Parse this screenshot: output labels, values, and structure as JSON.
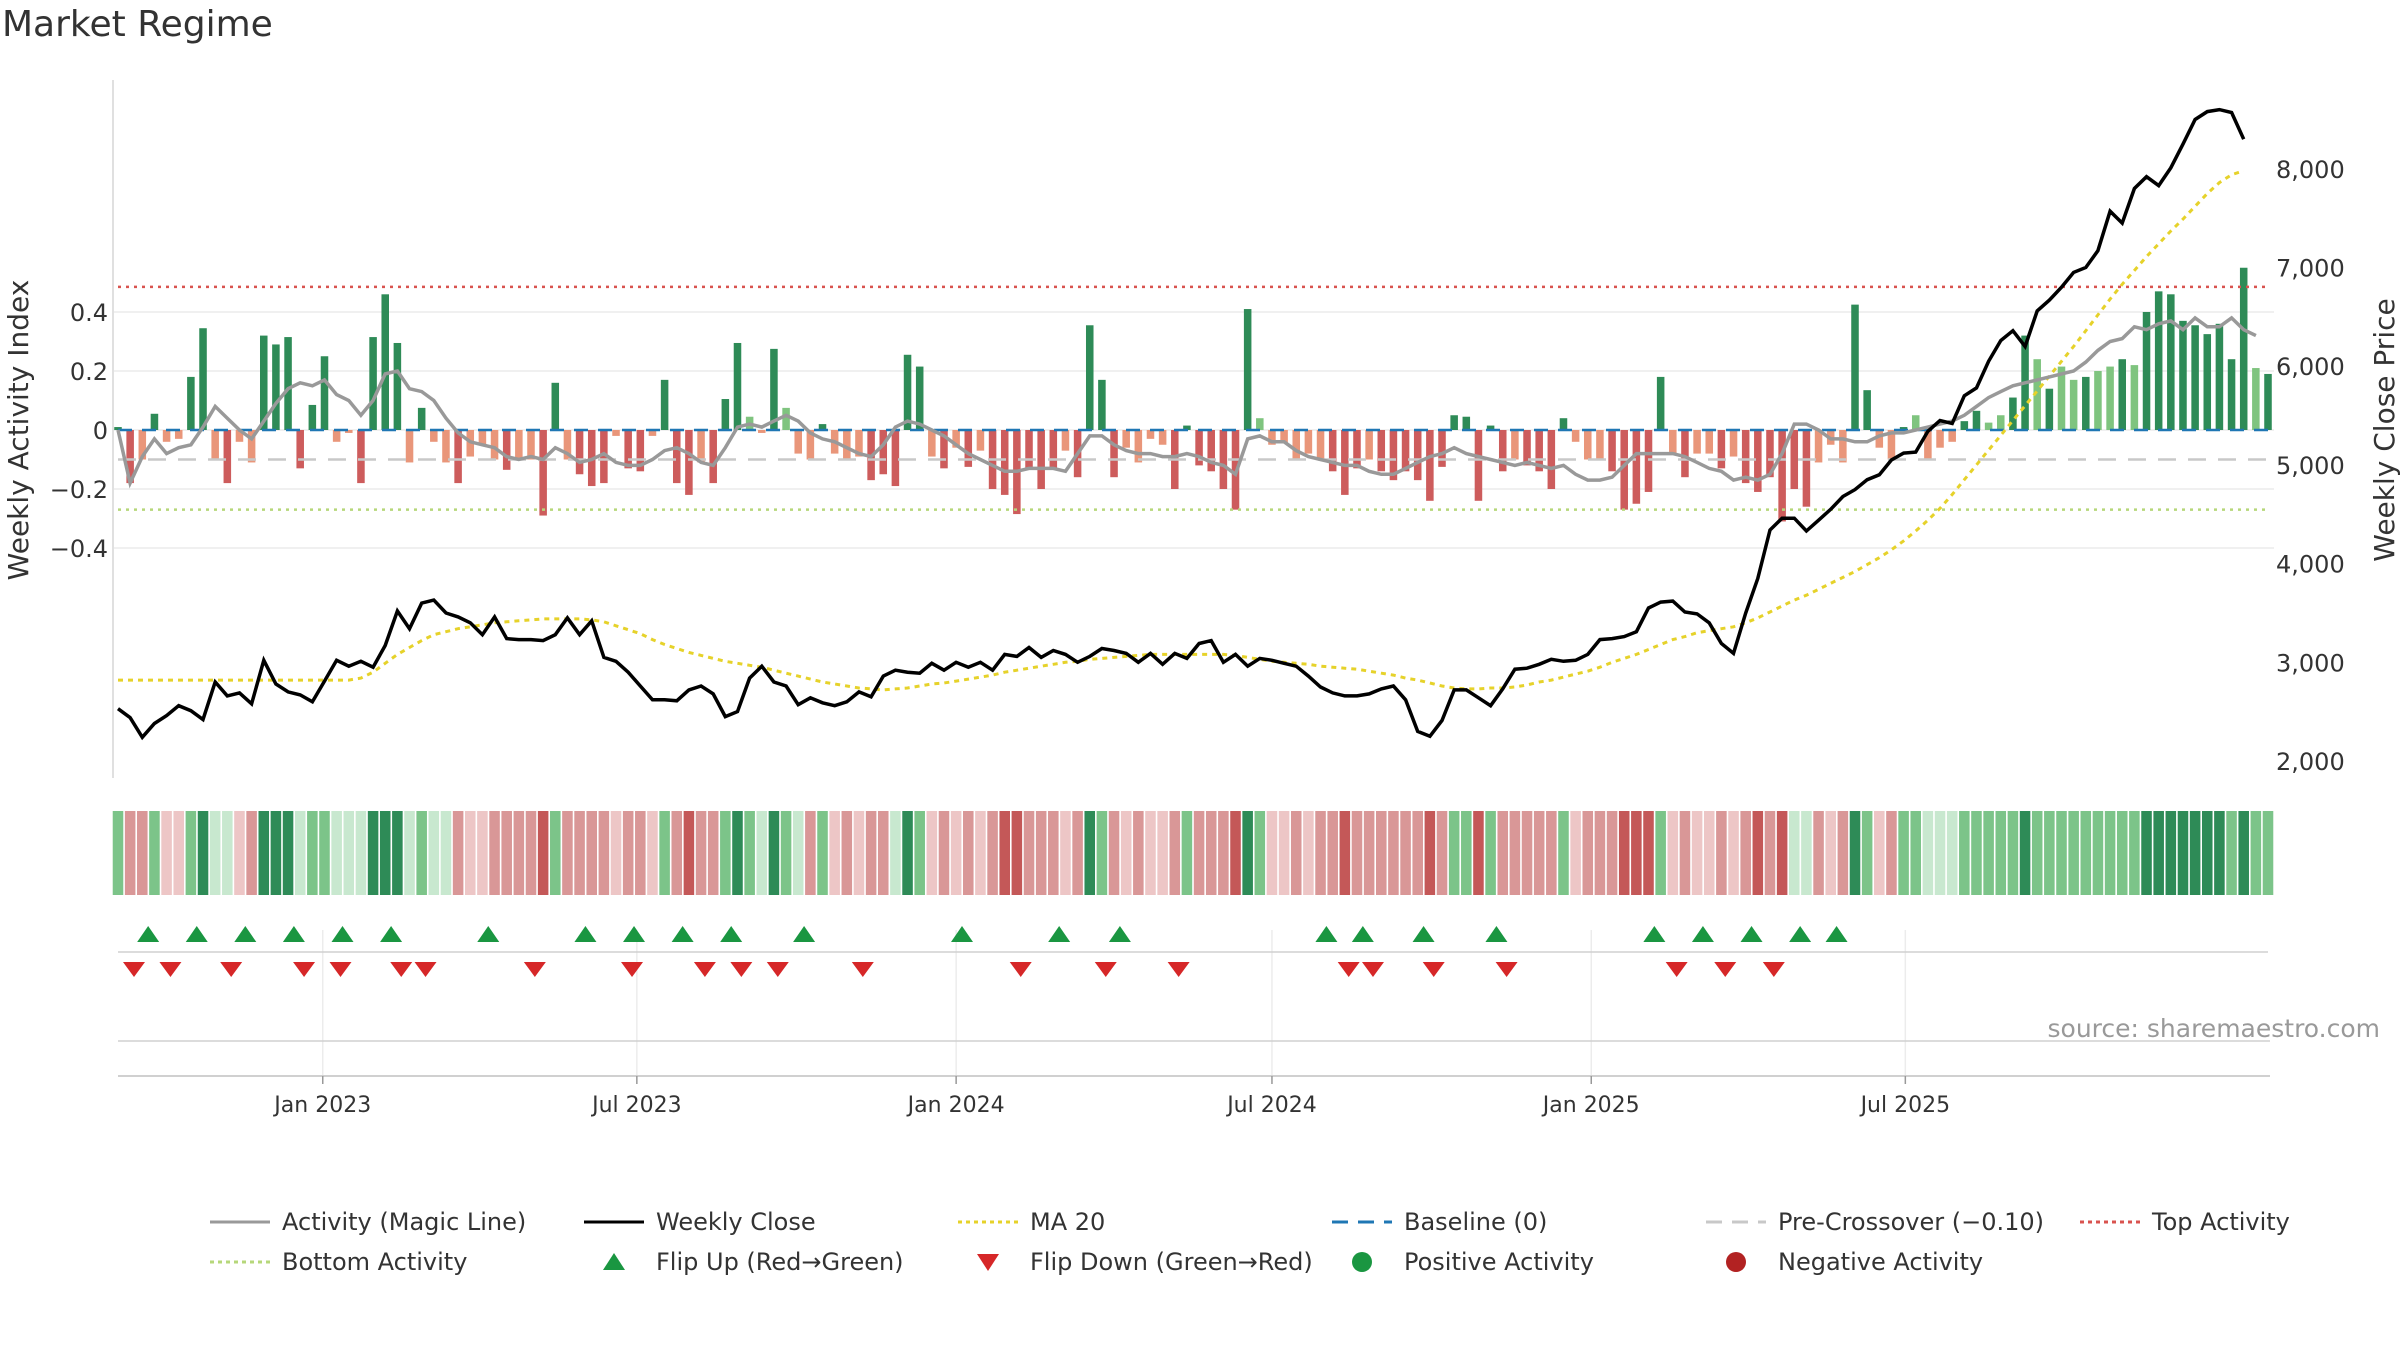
{
  "title": "Market Regime",
  "source": "source: sharemaestro.com",
  "chart_data": {
    "type": "bar+line",
    "title": "Market Regime",
    "left_axis": {
      "label": "Weekly Activity Index",
      "range": [
        -0.6,
        0.6
      ],
      "ticks": [
        0.4,
        0.2,
        0,
        -0.2,
        -0.4
      ],
      "tick_labels": [
        "0.4",
        "0.2",
        "0",
        "−0.2",
        "−0.4"
      ]
    },
    "right_axis": {
      "label": "Weekly Close Price",
      "range": [
        1800,
        8700
      ],
      "ticks": [
        8000,
        7000,
        6000,
        5000,
        4000,
        3000,
        2000
      ],
      "tick_labels": [
        "8,000",
        "7,000",
        "6,000",
        "5,000",
        "4,000",
        "3,000",
        "2,000"
      ]
    },
    "x_axis": {
      "type": "date",
      "start": "2022-09-05",
      "end": "2025-09-15",
      "ticks": [
        "Jan 2023",
        "Jul 2023",
        "Jan 2024",
        "Jul 2024",
        "Jan 2025",
        "Jul 2025"
      ],
      "tick_dates": [
        "2023-01-01",
        "2023-07-01",
        "2024-01-01",
        "2024-07-01",
        "2025-01-01",
        "2025-07-01"
      ]
    },
    "levels": {
      "top_activity": 0.485,
      "bottom_activity": -0.27,
      "pre_crossover": -0.1,
      "baseline": 0
    },
    "activity": [
      0.01,
      -0.18,
      -0.1,
      0.055,
      -0.04,
      -0.03,
      0.18,
      0.345,
      -0.1,
      -0.18,
      -0.04,
      -0.11,
      0.32,
      0.29,
      0.315,
      -0.13,
      0.085,
      0.25,
      -0.04,
      -0.01,
      -0.18,
      0.315,
      0.46,
      0.295,
      -0.11,
      0.075,
      -0.04,
      -0.11,
      -0.18,
      -0.09,
      -0.05,
      -0.1,
      -0.135,
      -0.095,
      -0.1,
      -0.29,
      0.16,
      -0.1,
      -0.15,
      -0.19,
      -0.18,
      -0.02,
      -0.13,
      -0.14,
      -0.02,
      0.17,
      -0.18,
      -0.22,
      -0.11,
      -0.18,
      0.105,
      0.295,
      0.045,
      -0.01,
      0.275,
      0.075,
      -0.08,
      -0.1,
      0.02,
      -0.08,
      -0.1,
      -0.09,
      -0.17,
      -0.15,
      -0.19,
      0.255,
      0.215,
      -0.09,
      -0.13,
      -0.06,
      -0.125,
      -0.07,
      -0.2,
      -0.22,
      -0.285,
      -0.13,
      -0.2,
      -0.13,
      -0.07,
      -0.16,
      0.355,
      0.17,
      -0.16,
      -0.06,
      -0.11,
      -0.03,
      -0.05,
      -0.2,
      0.015,
      -0.12,
      -0.14,
      -0.2,
      -0.27,
      0.41,
      0.04,
      -0.05,
      -0.045,
      -0.1,
      -0.08,
      -0.1,
      -0.14,
      -0.22,
      -0.13,
      -0.1,
      -0.14,
      -0.17,
      -0.14,
      -0.17,
      -0.24,
      -0.125,
      0.05,
      0.045,
      -0.24,
      0.015,
      -0.14,
      -0.1,
      -0.12,
      -0.14,
      -0.2,
      0.04,
      -0.04,
      -0.1,
      -0.1,
      -0.14,
      -0.27,
      -0.25,
      -0.21,
      0.18,
      -0.08,
      -0.16,
      -0.08,
      -0.08,
      -0.13,
      -0.09,
      -0.18,
      -0.21,
      -0.16,
      -0.31,
      -0.2,
      -0.26,
      -0.11,
      -0.05,
      -0.11,
      0.425,
      0.135,
      -0.06,
      -0.1,
      0.01,
      0.05,
      -0.1,
      -0.06,
      -0.04,
      0.03,
      0.065,
      0.025,
      0.05,
      0.11,
      0.32,
      0.24,
      0.14,
      0.215,
      0.17,
      0.18,
      0.2,
      0.215,
      0.24,
      0.22,
      0.4,
      0.47,
      0.46,
      0.37,
      0.355,
      0.325,
      0.36,
      0.24,
      0.55,
      0.21,
      0.19
    ],
    "weekly_close": [
      2530,
      2440,
      2240,
      2380,
      2460,
      2560,
      2510,
      2420,
      2800,
      2660,
      2690,
      2580,
      3020,
      2780,
      2700,
      2670,
      2600,
      2810,
      3020,
      2960,
      3010,
      2950,
      3170,
      3520,
      3340,
      3600,
      3630,
      3500,
      3460,
      3400,
      3280,
      3460,
      3240,
      3230,
      3230,
      3220,
      3280,
      3450,
      3280,
      3420,
      3050,
      3010,
      2900,
      2760,
      2620,
      2620,
      2610,
      2720,
      2760,
      2680,
      2450,
      2500,
      2840,
      2960,
      2800,
      2760,
      2570,
      2640,
      2590,
      2560,
      2600,
      2700,
      2650,
      2860,
      2920,
      2900,
      2890,
      2990,
      2920,
      3000,
      2950,
      3000,
      2920,
      3080,
      3060,
      3150,
      3050,
      3120,
      3080,
      3000,
      3060,
      3140,
      3120,
      3090,
      3000,
      3090,
      2980,
      3090,
      3040,
      3190,
      3220,
      3000,
      3080,
      2960,
      3040,
      3020,
      2990,
      2960,
      2860,
      2750,
      2690,
      2660,
      2660,
      2680,
      2730,
      2760,
      2620,
      2300,
      2250,
      2410,
      2720,
      2720,
      2640,
      2560,
      2730,
      2930,
      2940,
      2980,
      3030,
      3010,
      3020,
      3080,
      3230,
      3240,
      3260,
      3310,
      3550,
      3610,
      3620,
      3510,
      3490,
      3400,
      3190,
      3090,
      3500,
      3850,
      4340,
      4460,
      4460,
      4330,
      4440,
      4550,
      4680,
      4750,
      4850,
      4900,
      5050,
      5120,
      5130,
      5340,
      5450,
      5420,
      5700,
      5780,
      6050,
      6260,
      6360,
      6200,
      6560,
      6670,
      6800,
      6950,
      7000,
      7170,
      7570,
      7450,
      7800,
      7920,
      7830,
      8010,
      8250,
      8500,
      8580,
      8600,
      8570,
      8300
    ],
    "ma20": [
      2820,
      2820,
      2820,
      2820,
      2820,
      2820,
      2820,
      2820,
      2820,
      2820,
      2820,
      2820,
      2820,
      2820,
      2820,
      2820,
      2820,
      2820,
      2820,
      2820,
      2840,
      2900,
      2990,
      3080,
      3150,
      3220,
      3280,
      3310,
      3340,
      3360,
      3380,
      3400,
      3410,
      3420,
      3430,
      3440,
      3440,
      3440,
      3440,
      3430,
      3410,
      3370,
      3330,
      3290,
      3230,
      3180,
      3140,
      3100,
      3070,
      3040,
      3010,
      2990,
      2970,
      2950,
      2920,
      2890,
      2860,
      2830,
      2800,
      2780,
      2760,
      2740,
      2730,
      2720,
      2730,
      2740,
      2760,
      2780,
      2790,
      2810,
      2830,
      2850,
      2870,
      2900,
      2920,
      2940,
      2960,
      2980,
      3000,
      3010,
      3030,
      3040,
      3050,
      3060,
      3070,
      3080,
      3080,
      3080,
      3080,
      3080,
      3080,
      3080,
      3070,
      3050,
      3030,
      3010,
      3000,
      2990,
      2980,
      2960,
      2950,
      2940,
      2930,
      2910,
      2890,
      2870,
      2840,
      2820,
      2790,
      2760,
      2740,
      2730,
      2730,
      2740,
      2740,
      2750,
      2770,
      2800,
      2820,
      2850,
      2880,
      2910,
      2950,
      3000,
      3040,
      3080,
      3130,
      3180,
      3230,
      3260,
      3300,
      3320,
      3340,
      3360,
      3400,
      3450,
      3510,
      3570,
      3630,
      3680,
      3740,
      3800,
      3860,
      3920,
      3990,
      4060,
      4140,
      4230,
      4330,
      4440,
      4560,
      4700,
      4850,
      5000,
      5150,
      5300,
      5450,
      5600,
      5750,
      5900,
      6050,
      6200,
      6360,
      6520,
      6680,
      6830,
      6970,
      7110,
      7240,
      7370,
      7490,
      7620,
      7750,
      7860,
      7940,
      7980
    ],
    "magic_line": [
      0.0,
      -0.18,
      -0.09,
      -0.03,
      -0.08,
      -0.06,
      -0.05,
      0.01,
      0.08,
      0.04,
      0.0,
      -0.03,
      0.03,
      0.09,
      0.14,
      0.16,
      0.15,
      0.17,
      0.12,
      0.1,
      0.05,
      0.1,
      0.19,
      0.2,
      0.14,
      0.13,
      0.1,
      0.04,
      -0.01,
      -0.04,
      -0.05,
      -0.06,
      -0.09,
      -0.1,
      -0.09,
      -0.1,
      -0.06,
      -0.08,
      -0.11,
      -0.1,
      -0.08,
      -0.11,
      -0.12,
      -0.12,
      -0.1,
      -0.07,
      -0.06,
      -0.08,
      -0.11,
      -0.12,
      -0.06,
      0.01,
      0.02,
      0.01,
      0.03,
      0.05,
      0.03,
      -0.01,
      -0.03,
      -0.04,
      -0.06,
      -0.08,
      -0.09,
      -0.05,
      0.01,
      0.03,
      0.02,
      0.0,
      -0.02,
      -0.05,
      -0.08,
      -0.1,
      -0.12,
      -0.14,
      -0.14,
      -0.13,
      -0.13,
      -0.13,
      -0.14,
      -0.08,
      -0.02,
      -0.02,
      -0.05,
      -0.07,
      -0.08,
      -0.08,
      -0.09,
      -0.09,
      -0.08,
      -0.09,
      -0.11,
      -0.12,
      -0.15,
      -0.03,
      -0.02,
      -0.04,
      -0.04,
      -0.07,
      -0.09,
      -0.1,
      -0.11,
      -0.12,
      -0.12,
      -0.14,
      -0.15,
      -0.15,
      -0.13,
      -0.11,
      -0.09,
      -0.08,
      -0.06,
      -0.08,
      -0.09,
      -0.1,
      -0.11,
      -0.12,
      -0.11,
      -0.12,
      -0.13,
      -0.12,
      -0.15,
      -0.17,
      -0.17,
      -0.16,
      -0.12,
      -0.08,
      -0.08,
      -0.08,
      -0.08,
      -0.09,
      -0.11,
      -0.13,
      -0.14,
      -0.17,
      -0.16,
      -0.17,
      -0.15,
      -0.08,
      0.02,
      0.02,
      0.0,
      -0.03,
      -0.03,
      -0.04,
      -0.04,
      -0.02,
      -0.01,
      -0.01,
      0.0,
      0.01,
      0.02,
      0.03,
      0.05,
      0.08,
      0.11,
      0.13,
      0.15,
      0.16,
      0.17,
      0.18,
      0.19,
      0.2,
      0.23,
      0.27,
      0.3,
      0.31,
      0.35,
      0.34,
      0.36,
      0.37,
      0.34,
      0.38,
      0.35,
      0.35,
      0.38,
      0.34,
      0.32
    ],
    "flip_up_weeks": [
      1,
      5,
      9,
      13,
      17,
      21,
      29,
      37,
      41,
      45,
      49,
      55,
      68,
      76,
      81,
      98,
      101,
      106,
      112,
      125,
      129,
      133,
      137,
      140
    ],
    "flip_down_weeks": [
      0,
      3,
      8,
      14,
      17,
      22,
      24,
      33,
      41,
      47,
      50,
      53,
      60,
      73,
      80,
      86,
      100,
      102,
      107,
      113,
      127,
      131,
      135
    ],
    "strip_colors": {
      "strong_green": "#2e8b57",
      "green": "#7cc489",
      "light_green": "#c8e8cf",
      "light_red": "#edc6c6",
      "red": "#d99797",
      "strong_red": "#c45858"
    },
    "colors": {
      "strong_positive": "#2e8b57",
      "positive": "#7fc47f",
      "negative": "#cd5c5c",
      "weak_negative": "#e9967a",
      "magic_line": "#999999",
      "weekly_close": "#000000",
      "ma20": "#e6d22a",
      "baseline": "#1f77b4",
      "pre_crossover": "#c0c0c0",
      "top_activity": "#d9534f",
      "bottom_activity": "#b6d77a",
      "flip_up": "#1a9641",
      "flip_down": "#d62728",
      "positive_activity": "#1a9641",
      "negative_activity": "#b22222"
    }
  },
  "legend": {
    "activity": "Activity (Magic Line)",
    "weekly_close": "Weekly Close",
    "ma20": "MA 20",
    "baseline": "Baseline (0)",
    "pre_crossover": "Pre-Crossover (−0.10)",
    "top_activity": "Top Activity",
    "bottom_activity": "Bottom Activity",
    "flip_up": "Flip Up (Red→Green)",
    "flip_down": "Flip Down (Green→Red)",
    "positive_activity": "Positive Activity",
    "negative_activity": "Negative Activity"
  }
}
